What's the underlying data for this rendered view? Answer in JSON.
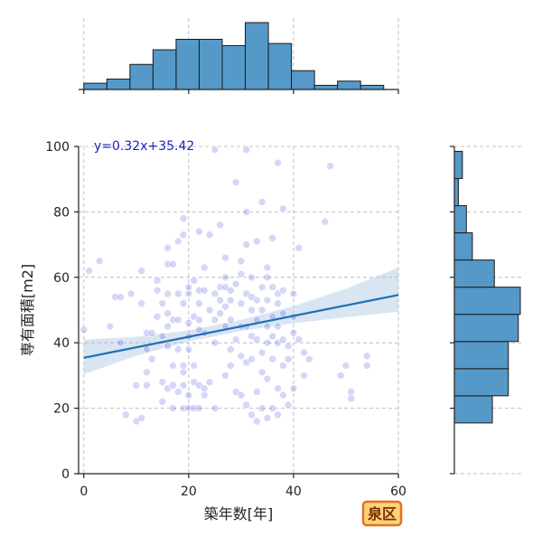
{
  "chart_data": {
    "type": "scatter",
    "xlabel": "築年数[年]",
    "ylabel": "専有面積[m2]",
    "xlim": [
      -1,
      60
    ],
    "ylim": [
      0,
      100
    ],
    "xticks": [
      0,
      20,
      40,
      60
    ],
    "yticks": [
      0,
      20,
      40,
      60,
      80,
      100
    ],
    "grid": true,
    "regression": {
      "label": "y=0.32x+35.42",
      "slope": 0.32,
      "intercept": 35.42,
      "ci_lower": [
        [
          0,
          30.4
        ],
        [
          10,
          36.0
        ],
        [
          20,
          40.4
        ],
        [
          30,
          43.6
        ],
        [
          40,
          46.0
        ],
        [
          50,
          47.8
        ],
        [
          60,
          49.5
        ]
      ],
      "ci_upper": [
        [
          0,
          41.0
        ],
        [
          10,
          41.8
        ],
        [
          20,
          43.8
        ],
        [
          30,
          47.0
        ],
        [
          40,
          51.2
        ],
        [
          50,
          56.5
        ],
        [
          60,
          63.0
        ]
      ]
    },
    "points": [
      [
        0,
        44
      ],
      [
        1,
        62
      ],
      [
        3,
        65
      ],
      [
        5,
        45
      ],
      [
        6,
        54
      ],
      [
        7,
        40
      ],
      [
        7,
        54
      ],
      [
        8,
        18
      ],
      [
        9,
        55
      ],
      [
        10,
        16
      ],
      [
        10,
        27
      ],
      [
        11,
        17
      ],
      [
        11,
        62
      ],
      [
        11,
        52
      ],
      [
        12,
        27
      ],
      [
        12,
        31
      ],
      [
        12,
        38
      ],
      [
        12,
        43
      ],
      [
        13,
        35
      ],
      [
        13,
        43
      ],
      [
        14,
        48
      ],
      [
        14,
        59
      ],
      [
        14,
        56
      ],
      [
        15,
        22
      ],
      [
        15,
        28
      ],
      [
        15,
        42
      ],
      [
        15,
        52
      ],
      [
        16,
        26
      ],
      [
        16,
        39
      ],
      [
        16,
        45
      ],
      [
        16,
        49
      ],
      [
        16,
        55
      ],
      [
        16,
        64
      ],
      [
        16,
        69
      ],
      [
        17,
        20
      ],
      [
        17,
        27
      ],
      [
        17,
        33
      ],
      [
        17,
        47
      ],
      [
        17,
        64
      ],
      [
        18,
        25
      ],
      [
        18,
        38
      ],
      [
        18,
        47
      ],
      [
        18,
        55
      ],
      [
        18,
        71
      ],
      [
        19,
        20
      ],
      [
        19,
        27
      ],
      [
        19,
        31
      ],
      [
        19,
        33
      ],
      [
        19,
        52
      ],
      [
        19,
        73
      ],
      [
        19,
        78
      ],
      [
        20,
        20
      ],
      [
        20,
        24
      ],
      [
        20,
        38
      ],
      [
        20,
        42
      ],
      [
        20,
        46
      ],
      [
        20,
        55
      ],
      [
        20,
        57
      ],
      [
        21,
        20
      ],
      [
        21,
        28
      ],
      [
        21,
        33
      ],
      [
        21,
        48
      ],
      [
        21,
        59
      ],
      [
        22,
        20
      ],
      [
        22,
        27
      ],
      [
        22,
        44
      ],
      [
        22,
        47
      ],
      [
        22,
        52
      ],
      [
        22,
        56
      ],
      [
        22,
        74
      ],
      [
        23,
        24
      ],
      [
        23,
        26
      ],
      [
        23,
        43
      ],
      [
        23,
        56
      ],
      [
        23,
        63
      ],
      [
        24,
        28
      ],
      [
        24,
        50
      ],
      [
        24,
        73
      ],
      [
        25,
        20
      ],
      [
        25,
        40
      ],
      [
        25,
        47
      ],
      [
        25,
        55
      ],
      [
        25,
        99
      ],
      [
        26,
        49
      ],
      [
        26,
        53
      ],
      [
        26,
        57
      ],
      [
        26,
        76
      ],
      [
        27,
        30
      ],
      [
        27,
        45
      ],
      [
        27,
        51
      ],
      [
        27,
        57
      ],
      [
        27,
        60
      ],
      [
        27,
        66
      ],
      [
        28,
        33
      ],
      [
        28,
        38
      ],
      [
        28,
        47
      ],
      [
        28,
        53
      ],
      [
        28,
        56
      ],
      [
        29,
        25
      ],
      [
        29,
        41
      ],
      [
        29,
        58
      ],
      [
        29,
        89
      ],
      [
        30,
        24
      ],
      [
        30,
        36
      ],
      [
        30,
        45
      ],
      [
        30,
        52
      ],
      [
        30,
        61
      ],
      [
        30,
        65
      ],
      [
        31,
        21
      ],
      [
        31,
        34
      ],
      [
        31,
        45
      ],
      [
        31,
        55
      ],
      [
        31,
        70
      ],
      [
        31,
        80
      ],
      [
        31,
        99
      ],
      [
        32,
        18
      ],
      [
        32,
        35
      ],
      [
        32,
        42
      ],
      [
        32,
        50
      ],
      [
        32,
        54
      ],
      [
        32,
        60
      ],
      [
        33,
        16
      ],
      [
        33,
        25
      ],
      [
        33,
        41
      ],
      [
        33,
        47
      ],
      [
        33,
        53
      ],
      [
        33,
        71
      ],
      [
        34,
        20
      ],
      [
        34,
        31
      ],
      [
        34,
        37
      ],
      [
        34,
        50
      ],
      [
        34,
        57
      ],
      [
        34,
        83
      ],
      [
        35,
        17
      ],
      [
        35,
        29
      ],
      [
        35,
        40
      ],
      [
        35,
        45
      ],
      [
        35,
        53
      ],
      [
        35,
        60
      ],
      [
        35,
        63
      ],
      [
        36,
        20
      ],
      [
        36,
        35
      ],
      [
        36,
        42
      ],
      [
        36,
        48
      ],
      [
        36,
        57
      ],
      [
        36,
        72
      ],
      [
        37,
        18
      ],
      [
        37,
        26
      ],
      [
        37,
        40
      ],
      [
        37,
        45
      ],
      [
        37,
        52
      ],
      [
        37,
        55
      ],
      [
        37,
        95
      ],
      [
        38,
        24
      ],
      [
        38,
        33
      ],
      [
        38,
        41
      ],
      [
        38,
        49
      ],
      [
        38,
        56
      ],
      [
        38,
        81
      ],
      [
        39,
        21
      ],
      [
        39,
        35
      ],
      [
        39,
        39
      ],
      [
        40,
        26
      ],
      [
        40,
        43
      ],
      [
        40,
        48
      ],
      [
        40,
        55
      ],
      [
        41,
        41
      ],
      [
        41,
        69
      ],
      [
        42,
        30
      ],
      [
        42,
        37
      ],
      [
        43,
        35
      ],
      [
        46,
        77
      ],
      [
        47,
        94
      ],
      [
        49,
        30
      ],
      [
        50,
        33
      ],
      [
        51,
        23
      ],
      [
        51,
        25
      ],
      [
        54,
        33
      ],
      [
        54,
        36
      ]
    ]
  },
  "badge": {
    "label": "泉区"
  }
}
